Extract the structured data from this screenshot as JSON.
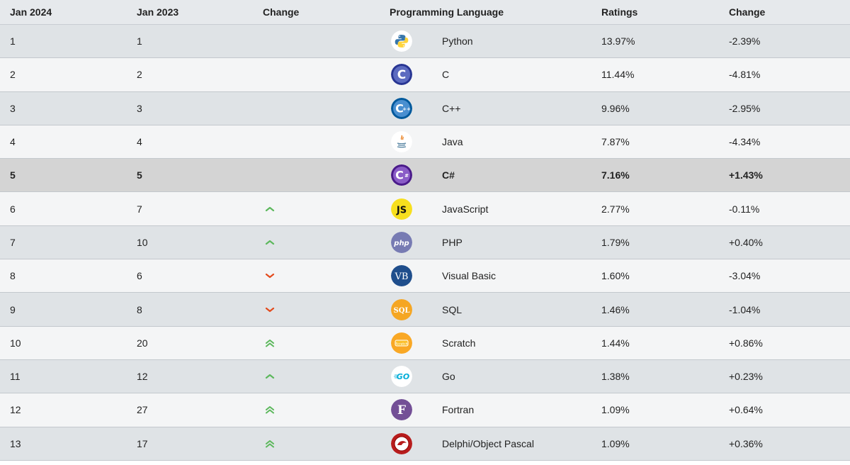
{
  "columns": {
    "jan2024": "Jan 2024",
    "jan2023": "Jan 2023",
    "change": "Change",
    "language": "Programming Language",
    "ratings": "Ratings",
    "change2": "Change"
  },
  "colors": {
    "up": "#5cb85c",
    "down": "#e34a1c",
    "highlight": "#d4d4d4"
  },
  "rows": [
    {
      "r24": "1",
      "r23": "1",
      "trend": "none",
      "icon": "python-icon",
      "lang": "Python",
      "rating": "13.97%",
      "delta": "-2.39%"
    },
    {
      "r24": "2",
      "r23": "2",
      "trend": "none",
      "icon": "c-icon",
      "lang": "C",
      "rating": "11.44%",
      "delta": "-4.81%"
    },
    {
      "r24": "3",
      "r23": "3",
      "trend": "none",
      "icon": "cpp-icon",
      "lang": "C++",
      "rating": "9.96%",
      "delta": "-2.95%"
    },
    {
      "r24": "4",
      "r23": "4",
      "trend": "none",
      "icon": "java-icon",
      "lang": "Java",
      "rating": "7.87%",
      "delta": "-4.34%"
    },
    {
      "r24": "5",
      "r23": "5",
      "trend": "none",
      "icon": "csharp-icon",
      "lang": "C#",
      "rating": "7.16%",
      "delta": "+1.43%"
    },
    {
      "r24": "6",
      "r23": "7",
      "trend": "up",
      "icon": "javascript-icon",
      "lang": "JavaScript",
      "rating": "2.77%",
      "delta": "-0.11%"
    },
    {
      "r24": "7",
      "r23": "10",
      "trend": "up",
      "icon": "php-icon",
      "lang": "PHP",
      "rating": "1.79%",
      "delta": "+0.40%"
    },
    {
      "r24": "8",
      "r23": "6",
      "trend": "down",
      "icon": "visual-basic-icon",
      "lang": "Visual Basic",
      "rating": "1.60%",
      "delta": "-3.04%"
    },
    {
      "r24": "9",
      "r23": "8",
      "trend": "down",
      "icon": "sql-icon",
      "lang": "SQL",
      "rating": "1.46%",
      "delta": "-1.04%"
    },
    {
      "r24": "10",
      "r23": "20",
      "trend": "upup",
      "icon": "scratch-icon",
      "lang": "Scratch",
      "rating": "1.44%",
      "delta": "+0.86%"
    },
    {
      "r24": "11",
      "r23": "12",
      "trend": "up",
      "icon": "go-icon",
      "lang": "Go",
      "rating": "1.38%",
      "delta": "+0.23%"
    },
    {
      "r24": "12",
      "r23": "27",
      "trend": "upup",
      "icon": "fortran-icon",
      "lang": "Fortran",
      "rating": "1.09%",
      "delta": "+0.64%"
    },
    {
      "r24": "13",
      "r23": "17",
      "trend": "upup",
      "icon": "delphi-icon",
      "lang": "Delphi/Object Pascal",
      "rating": "1.09%",
      "delta": "+0.36%"
    }
  ]
}
